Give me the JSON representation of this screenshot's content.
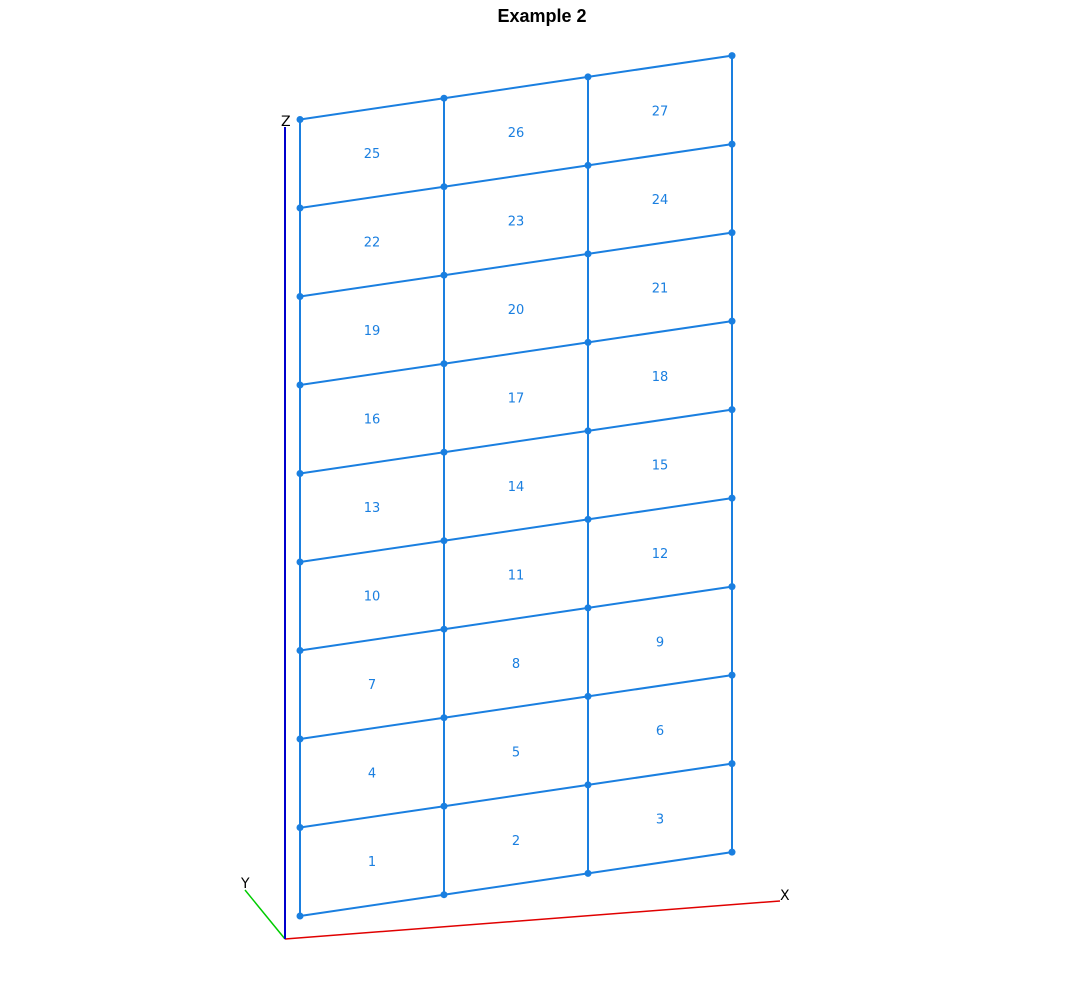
{
  "title": "Example 2",
  "axes": {
    "x_label": "X",
    "y_label": "Y",
    "z_label": "Z",
    "x_color": "#e00000",
    "y_color": "#00cc00",
    "z_color": "#0000cc"
  },
  "mesh": {
    "color": "#1a7fe0",
    "columns": 3,
    "rows": 9,
    "element_labels": [
      "1",
      "2",
      "3",
      "4",
      "5",
      "6",
      "7",
      "8",
      "9",
      "10",
      "11",
      "12",
      "13",
      "14",
      "15",
      "16",
      "17",
      "18",
      "19",
      "20",
      "21",
      "22",
      "23",
      "24",
      "25",
      "26",
      "27"
    ]
  }
}
